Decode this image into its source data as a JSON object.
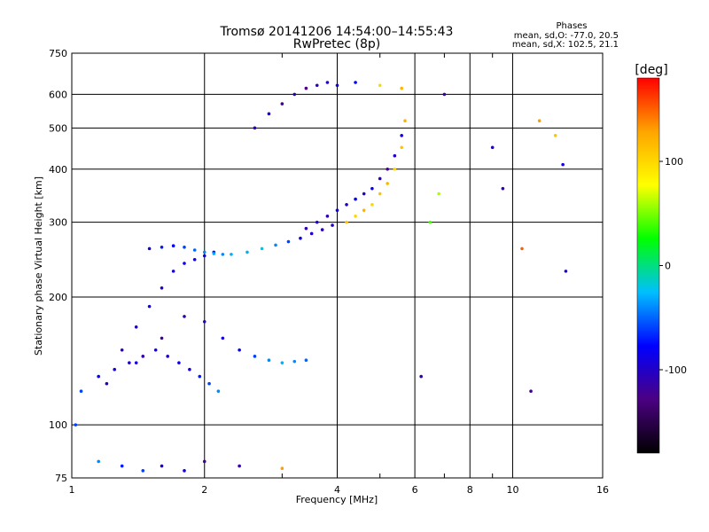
{
  "chart_data": {
    "type": "scatter",
    "title": "Tromsø 20141206 14:54:00–14:55:43",
    "subtitle": "RwPretec (8p)",
    "xlabel": "Frequency [MHz]",
    "ylabel": "Stationary phase Virtual Height [km]",
    "x_scale": "log",
    "y_scale": "log",
    "xlim": [
      1,
      16
    ],
    "ylim": [
      75,
      750
    ],
    "x_ticks": [
      1,
      2,
      4,
      6,
      8,
      10,
      16
    ],
    "x_minor_ticks": [
      3,
      5,
      7,
      9
    ],
    "y_ticks": [
      75,
      100,
      200,
      300,
      400,
      500,
      600,
      750
    ],
    "grid": true,
    "info_box": {
      "title": "Phases",
      "line1": "mean, sd,O: -77.0, 20.5",
      "line2": "mean, sd,X: 102.5, 21.1"
    },
    "colorbar": {
      "label": "[deg]",
      "range": [
        -180,
        180
      ],
      "ticks": [
        100,
        0,
        -100
      ],
      "colors": [
        "#000000",
        "#4b0082",
        "#0000ff",
        "#00bfff",
        "#00ff00",
        "#ffff00",
        "#ffa500",
        "#ff0000"
      ]
    },
    "series": [
      {
        "x": [
          1.05,
          1.15,
          1.25,
          1.35,
          1.45,
          1.55,
          1.65,
          1.75,
          1.85,
          1.95,
          2.05,
          2.15
        ],
        "y": [
          120,
          130,
          135,
          140,
          145,
          150,
          145,
          140,
          135,
          130,
          125,
          120
        ],
        "phase": [
          -60,
          -80,
          -95,
          -100,
          -110,
          -90,
          -100,
          -85,
          -95,
          -70,
          -60,
          -40
        ]
      },
      {
        "x": [
          1.3,
          1.4,
          1.5,
          1.6,
          1.7,
          1.8,
          1.9,
          2.0,
          2.1
        ],
        "y": [
          150,
          170,
          190,
          210,
          230,
          240,
          245,
          250,
          255
        ],
        "phase": [
          -110,
          -100,
          -90,
          -100,
          -95,
          -85,
          -90,
          -80,
          -75
        ]
      },
      {
        "x": [
          1.5,
          1.6,
          1.7,
          1.8,
          1.9,
          2.0,
          2.1,
          2.2,
          2.3,
          2.5,
          2.7,
          2.9,
          3.1,
          3.3,
          3.5,
          3.7,
          3.9
        ],
        "y": [
          260,
          262,
          264,
          262,
          258,
          255,
          253,
          252,
          252,
          255,
          260,
          265,
          270,
          275,
          282,
          288,
          295
        ],
        "phase": [
          -90,
          -70,
          -80,
          -60,
          -50,
          -40,
          -30,
          -40,
          -30,
          -30,
          -20,
          -40,
          -60,
          -90,
          -100,
          -110,
          -100
        ]
      },
      {
        "x": [
          3.4,
          3.6,
          3.8,
          4.0,
          4.2,
          4.4,
          4.6,
          4.8,
          5.0,
          5.2,
          5.4,
          5.6
        ],
        "y": [
          290,
          300,
          310,
          320,
          330,
          340,
          350,
          360,
          380,
          400,
          430,
          480
        ],
        "phase": [
          -110,
          -100,
          -110,
          -90,
          -100,
          -80,
          -100,
          -90,
          -110,
          -120,
          -100,
          -90
        ]
      },
      {
        "x": [
          4.2,
          4.4,
          4.6,
          4.8,
          5.0,
          5.2,
          5.4,
          5.6,
          5.7
        ],
        "y": [
          300,
          310,
          320,
          330,
          350,
          370,
          400,
          450,
          520
        ],
        "phase": [
          110,
          100,
          120,
          100,
          110,
          120,
          100,
          110,
          120
        ]
      },
      {
        "x": [
          2.6,
          2.8,
          3.0,
          3.2,
          3.4,
          3.6,
          3.8,
          4.0,
          4.4,
          5.0,
          5.6
        ],
        "y": [
          500,
          540,
          570,
          600,
          620,
          630,
          640,
          630,
          640,
          630,
          620
        ],
        "phase": [
          -110,
          -100,
          -120,
          -110,
          -130,
          -110,
          -100,
          -90,
          -80,
          100,
          120
        ]
      },
      {
        "x": [
          1.2,
          1.4,
          1.6,
          1.8,
          2.0,
          2.2,
          2.4,
          2.6,
          2.8,
          3.0,
          3.2,
          3.4
        ],
        "y": [
          125,
          140,
          160,
          180,
          175,
          160,
          150,
          145,
          142,
          140,
          141,
          142
        ],
        "phase": [
          -100,
          -90,
          -120,
          -110,
          -100,
          -90,
          -80,
          -60,
          -40,
          -30,
          -40,
          -50
        ]
      },
      {
        "x": [
          1.02,
          1.15,
          1.3,
          1.45,
          1.6,
          1.8,
          2.0,
          2.4,
          3.0
        ],
        "y": [
          100,
          82,
          80,
          78,
          80,
          78,
          82,
          80,
          79
        ],
        "phase": [
          -60,
          -40,
          -70,
          -60,
          -100,
          -90,
          -120,
          -110,
          130
        ]
      },
      {
        "x": [
          6.2,
          6.5,
          6.8,
          7.0,
          9.0,
          9.5,
          10.5,
          11.0,
          11.5,
          12.5,
          13.0,
          13.2
        ],
        "y": [
          130,
          300,
          350,
          600,
          450,
          360,
          260,
          120,
          520,
          480,
          410,
          230
        ],
        "phase": [
          -110,
          40,
          60,
          -120,
          -100,
          -110,
          150,
          -120,
          130,
          110,
          -90,
          -100
        ]
      }
    ]
  }
}
